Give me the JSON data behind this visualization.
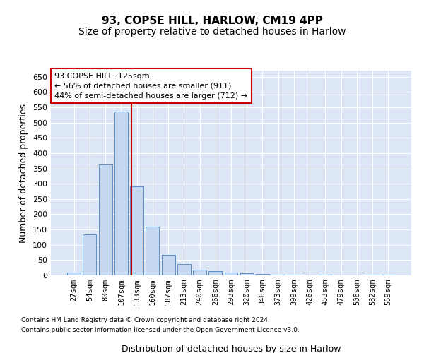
{
  "title": "93, COPSE HILL, HARLOW, CM19 4PP",
  "subtitle": "Size of property relative to detached houses in Harlow",
  "xlabel": "Distribution of detached houses by size in Harlow",
  "ylabel": "Number of detached properties",
  "categories": [
    "27sqm",
    "54sqm",
    "80sqm",
    "107sqm",
    "133sqm",
    "160sqm",
    "187sqm",
    "213sqm",
    "240sqm",
    "266sqm",
    "293sqm",
    "320sqm",
    "346sqm",
    "373sqm",
    "399sqm",
    "426sqm",
    "453sqm",
    "479sqm",
    "506sqm",
    "532sqm",
    "559sqm"
  ],
  "values": [
    10,
    135,
    362,
    537,
    292,
    160,
    67,
    38,
    18,
    15,
    10,
    8,
    4,
    3,
    3,
    0,
    3,
    0,
    0,
    3,
    2
  ],
  "bar_color": "#c5d8ef",
  "bar_edge_color": "#5b8fc9",
  "vline_x_index": 4,
  "vline_color": "#cc0000",
  "annotation_text": "93 COPSE HILL: 125sqm\n← 56% of detached houses are smaller (911)\n44% of semi-detached houses are larger (712) →",
  "annotation_box_color": "white",
  "annotation_box_edge": "#cc0000",
  "ylim": [
    0,
    670
  ],
  "yticks": [
    0,
    50,
    100,
    150,
    200,
    250,
    300,
    350,
    400,
    450,
    500,
    550,
    600,
    650
  ],
  "footer_line1": "Contains HM Land Registry data © Crown copyright and database right 2024.",
  "footer_line2": "Contains public sector information licensed under the Open Government Licence v3.0.",
  "fig_bg_color": "#ffffff",
  "plot_bg_color": "#dce6f5",
  "grid_color": "#ffffff",
  "title_fontsize": 11,
  "subtitle_fontsize": 10,
  "xlabel_fontsize": 9,
  "ylabel_fontsize": 9,
  "tick_fontsize": 8,
  "xtick_fontsize": 7.5
}
